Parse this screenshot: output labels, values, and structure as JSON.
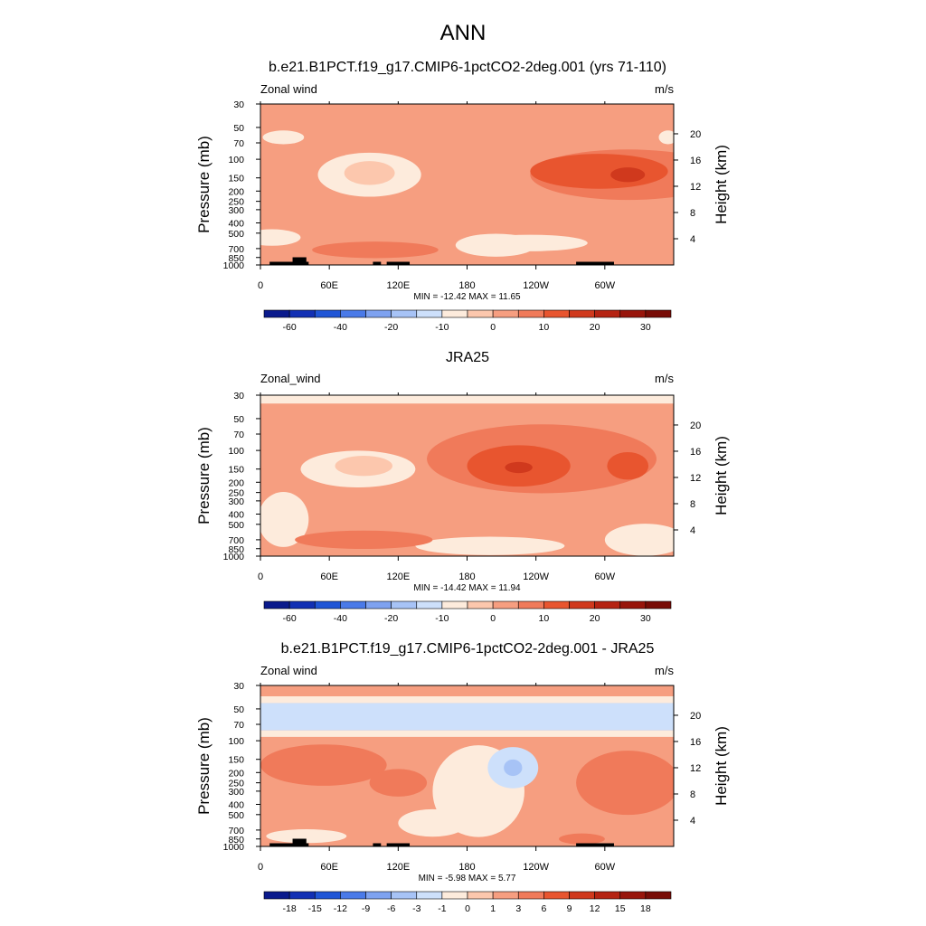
{
  "main_title": "ANN",
  "colors": {
    "land": "#000000",
    "axis": "#000000",
    "background": "#ffffff"
  },
  "chart_data": [
    {
      "type": "heatmap",
      "subtype": "pressure-longitude filled contour",
      "title": "b.e21.B1PCT.f19_g17.CMIP6-1pctCO2-2deg.001 (yrs 71-110)",
      "variable": "Zonal wind",
      "units": "m/s",
      "xlabel": "",
      "ylabel": "Pressure (mb)",
      "ylabel_right": "Height (km)",
      "x_ticks": [
        "0",
        "60E",
        "120E",
        "180",
        "120W",
        "60W"
      ],
      "x_tick_degrees": [
        0,
        60,
        120,
        180,
        240,
        300
      ],
      "xlim": [
        0,
        360
      ],
      "y_ticks": [
        30,
        50,
        70,
        100,
        150,
        200,
        250,
        300,
        400,
        500,
        700,
        850,
        1000
      ],
      "ylim": [
        1000,
        30
      ],
      "height_ticks": [
        20,
        16,
        12,
        8,
        4
      ],
      "min_max_text": "MIN = -12.42  MAX =  11.65",
      "min": -12.42,
      "max": 11.65,
      "colorbar": {
        "levels": [
          -70,
          -60,
          -50,
          -40,
          -30,
          -20,
          -15,
          -10,
          -5,
          0,
          5,
          10,
          15,
          20,
          25,
          30,
          35
        ],
        "labels": [
          "-60",
          "-40",
          "-20",
          "-10",
          "0",
          "10",
          "20",
          "30"
        ],
        "label_levels": [
          -60,
          -40,
          -20,
          -10,
          0,
          10,
          20,
          30
        ],
        "colors": [
          "#0a1a8c",
          "#1230b4",
          "#1f55d6",
          "#4a7ae8",
          "#7ea2f0",
          "#a7c3f6",
          "#cde0fb",
          "#fdebdc",
          "#fcc7ad",
          "#f69e80",
          "#f07a5a",
          "#e8552f",
          "#d0391d",
          "#b52312",
          "#98150b",
          "#780c06"
        ]
      },
      "field": {
        "background_level": 0,
        "features": [
          {
            "lon": 95,
            "p": 140,
            "rlon": 45,
            "rp": 0.48,
            "level": -10
          },
          {
            "lon": 95,
            "p": 135,
            "rlon": 22,
            "rp": 0.26,
            "level": -5
          },
          {
            "lon": 20,
            "p": 62,
            "rlon": 18,
            "rp": 0.15,
            "level": -10
          },
          {
            "lon": 355,
            "p": 62,
            "rlon": 8,
            "rp": 0.15,
            "level": -10
          },
          {
            "lon": 10,
            "p": 550,
            "rlon": 25,
            "rp": 0.18,
            "level": -10
          },
          {
            "lon": 235,
            "p": 620,
            "rlon": 50,
            "rp": 0.18,
            "level": -10
          },
          {
            "lon": 205,
            "p": 650,
            "rlon": 35,
            "rp": 0.25,
            "level": -10
          },
          {
            "lon": 320,
            "p": 140,
            "rlon": 85,
            "rp": 0.55,
            "level": 5
          },
          {
            "lon": 295,
            "p": 130,
            "rlon": 60,
            "rp": 0.38,
            "level": 10
          },
          {
            "lon": 320,
            "p": 140,
            "rlon": 15,
            "rp": 0.16,
            "level": 15
          },
          {
            "lon": 100,
            "p": 720,
            "rlon": 55,
            "rp": 0.18,
            "level": 5
          }
        ]
      },
      "land_segments": [
        [
          8,
          42
        ],
        [
          98,
          105
        ],
        [
          110,
          130
        ],
        [
          275,
          308
        ]
      ],
      "land_bumps": [
        [
          28,
          40
        ]
      ]
    },
    {
      "type": "heatmap",
      "subtype": "pressure-longitude filled contour",
      "title": "JRA25",
      "variable": "Zonal_wind",
      "units": "m/s",
      "xlabel": "",
      "ylabel": "Pressure (mb)",
      "ylabel_right": "Height (km)",
      "x_ticks": [
        "0",
        "60E",
        "120E",
        "180",
        "120W",
        "60W"
      ],
      "x_tick_degrees": [
        0,
        60,
        120,
        180,
        240,
        300
      ],
      "xlim": [
        0,
        360
      ],
      "y_ticks": [
        30,
        50,
        70,
        100,
        150,
        200,
        250,
        300,
        400,
        500,
        700,
        850,
        1000
      ],
      "ylim": [
        1000,
        30
      ],
      "height_ticks": [
        20,
        16,
        12,
        8,
        4
      ],
      "min_max_text": "MIN = -14.42  MAX =  11.94",
      "min": -14.42,
      "max": 11.94,
      "colorbar": {
        "levels": [
          -70,
          -60,
          -50,
          -40,
          -30,
          -20,
          -15,
          -10,
          -5,
          0,
          5,
          10,
          15,
          20,
          25,
          30,
          35
        ],
        "labels": [
          "-60",
          "-40",
          "-20",
          "-10",
          "0",
          "10",
          "20",
          "30"
        ],
        "label_levels": [
          -60,
          -40,
          -20,
          -10,
          0,
          10,
          20,
          30
        ],
        "colors": [
          "#0a1a8c",
          "#1230b4",
          "#1f55d6",
          "#4a7ae8",
          "#7ea2f0",
          "#a7c3f6",
          "#cde0fb",
          "#fdebdc",
          "#fcc7ad",
          "#f69e80",
          "#f07a5a",
          "#e8552f",
          "#d0391d",
          "#b52312",
          "#98150b",
          "#780c06"
        ]
      },
      "field": {
        "background_level": 0,
        "top_band": {
          "p_max": 36,
          "level": -10
        },
        "features": [
          {
            "lon": 85,
            "p": 150,
            "rlon": 50,
            "rp": 0.4,
            "level": -10
          },
          {
            "lon": 90,
            "p": 140,
            "rlon": 25,
            "rp": 0.22,
            "level": -5
          },
          {
            "lon": 20,
            "p": 450,
            "rlon": 22,
            "rp": 0.6,
            "level": -10
          },
          {
            "lon": 200,
            "p": 800,
            "rlon": 65,
            "rp": 0.2,
            "level": -10
          },
          {
            "lon": 335,
            "p": 700,
            "rlon": 35,
            "rp": 0.35,
            "level": -10
          },
          {
            "lon": 245,
            "p": 120,
            "rlon": 100,
            "rp": 0.75,
            "level": 5
          },
          {
            "lon": 225,
            "p": 140,
            "rlon": 45,
            "rp": 0.45,
            "level": 10
          },
          {
            "lon": 225,
            "p": 145,
            "rlon": 12,
            "rp": 0.12,
            "level": 15
          },
          {
            "lon": 320,
            "p": 140,
            "rlon": 18,
            "rp": 0.3,
            "level": 10
          },
          {
            "lon": 90,
            "p": 700,
            "rlon": 60,
            "rp": 0.2,
            "level": 5
          }
        ]
      },
      "land_segments": [],
      "land_bumps": []
    },
    {
      "type": "heatmap",
      "subtype": "pressure-longitude filled contour (difference)",
      "title": "b.e21.B1PCT.f19_g17.CMIP6-1pctCO2-2deg.001 - JRA25",
      "variable": "Zonal wind",
      "units": "m/s",
      "xlabel": "",
      "ylabel": "Pressure (mb)",
      "ylabel_right": "Height (km)",
      "x_ticks": [
        "0",
        "60E",
        "120E",
        "180",
        "120W",
        "60W"
      ],
      "x_tick_degrees": [
        0,
        60,
        120,
        180,
        240,
        300
      ],
      "xlim": [
        0,
        360
      ],
      "y_ticks": [
        30,
        50,
        70,
        100,
        150,
        200,
        250,
        300,
        400,
        500,
        700,
        850,
        1000
      ],
      "ylim": [
        1000,
        30
      ],
      "height_ticks": [
        20,
        16,
        12,
        8,
        4
      ],
      "min_max_text": "MIN = -5.98  MAX =  5.77",
      "min": -5.98,
      "max": 5.77,
      "colorbar": {
        "levels": [
          -21,
          -18,
          -15,
          -12,
          -9,
          -6,
          -3,
          -1,
          0,
          1,
          3,
          6,
          9,
          12,
          15,
          18,
          21
        ],
        "labels": [
          "-18",
          "-15",
          "-12",
          "-9",
          "-6",
          "-3",
          "-1",
          "0",
          "1",
          "3",
          "6",
          "9",
          "12",
          "15",
          "18"
        ],
        "label_levels": [
          -18,
          -15,
          -12,
          -9,
          -6,
          -3,
          -1,
          0,
          1,
          3,
          6,
          9,
          12,
          15,
          18
        ],
        "colors": [
          "#0a1a8c",
          "#1230b4",
          "#1f55d6",
          "#4a7ae8",
          "#7ea2f0",
          "#a7c3f6",
          "#cde0fb",
          "#fdebdc",
          "#fcc7ad",
          "#f69e80",
          "#f07a5a",
          "#e8552f",
          "#d0391d",
          "#b52312",
          "#98150b",
          "#780c06"
        ]
      },
      "field": {
        "background_level": 1,
        "bands": [
          {
            "p_min": 30,
            "p_max": 38,
            "level": 1
          },
          {
            "p_min": 38,
            "p_max": 44,
            "level": -1
          },
          {
            "p_min": 44,
            "p_max": 80,
            "level": -3
          },
          {
            "p_min": 80,
            "p_max": 92,
            "level": -1
          }
        ],
        "features": [
          {
            "lon": 55,
            "p": 170,
            "rlon": 55,
            "rp": 0.45,
            "level": 3
          },
          {
            "lon": 120,
            "p": 250,
            "rlon": 25,
            "rp": 0.3,
            "level": 3
          },
          {
            "lon": 320,
            "p": 250,
            "rlon": 45,
            "rp": 0.7,
            "level": 3
          },
          {
            "lon": 190,
            "p": 300,
            "rlon": 40,
            "rp": 1.0,
            "level": -1
          },
          {
            "lon": 220,
            "p": 180,
            "rlon": 22,
            "rp": 0.45,
            "level": -3
          },
          {
            "lon": 220,
            "p": 180,
            "rlon": 8,
            "rp": 0.18,
            "level": -6
          },
          {
            "lon": 150,
            "p": 600,
            "rlon": 30,
            "rp": 0.3,
            "level": -1
          },
          {
            "lon": 40,
            "p": 800,
            "rlon": 35,
            "rp": 0.15,
            "level": -1
          },
          {
            "lon": 280,
            "p": 850,
            "rlon": 20,
            "rp": 0.12,
            "level": 3
          }
        ]
      },
      "land_segments": [
        [
          8,
          42
        ],
        [
          98,
          105
        ],
        [
          110,
          130
        ],
        [
          275,
          308
        ]
      ],
      "land_bumps": [
        [
          28,
          40
        ]
      ]
    }
  ]
}
